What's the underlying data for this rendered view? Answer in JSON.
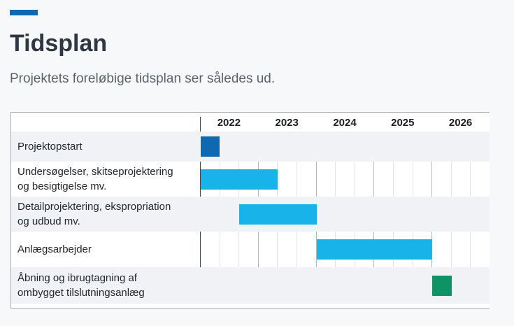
{
  "header": {
    "title": "Tidsplan",
    "subtitle": "Projektets foreløbige tidsplan ser således ud.",
    "accent_color": "#0f68b2"
  },
  "chart_data": {
    "type": "bar",
    "variant": "gantt-timeline",
    "title": "Tidsplan",
    "x_axis": {
      "tick_labels": [
        "2022",
        "2023",
        "2024",
        "2025",
        "2026"
      ],
      "range_years": [
        2022,
        2027
      ],
      "minor_gridlines": "every 1/3 year (tertial)",
      "grid": true
    },
    "legend": "none",
    "tasks": [
      {
        "label": "Projektopstart",
        "start": 2022.0,
        "end": 2022.33,
        "color": "#0f68b2"
      },
      {
        "label": "Undersøgelser, skitseprojektering\nog besigtigelse mv.",
        "start": 2022.0,
        "end": 2023.33,
        "color": "#18b4e9"
      },
      {
        "label": "Detailprojektering, ekspropriation\nog udbud mv.",
        "start": 2022.67,
        "end": 2024.0,
        "color": "#18b4e9"
      },
      {
        "label": "Anlægsarbejder",
        "start": 2024.0,
        "end": 2026.0,
        "color": "#18b4e9"
      },
      {
        "label": "Åbning og ibrugtagning af\nombygget tilslutningsanlæg",
        "start": 2026.0,
        "end": 2026.33,
        "color": "#0d9364"
      }
    ],
    "colors": {
      "bar_dark_blue": "#0f68b2",
      "bar_cyan": "#18b4e9",
      "bar_green": "#0d9364",
      "row_stripe": "#f0f2f6",
      "gridline_year": "#b4b7bc",
      "gridline_tertial": "#e1e3e6",
      "axis_separator": "#43484e"
    }
  }
}
